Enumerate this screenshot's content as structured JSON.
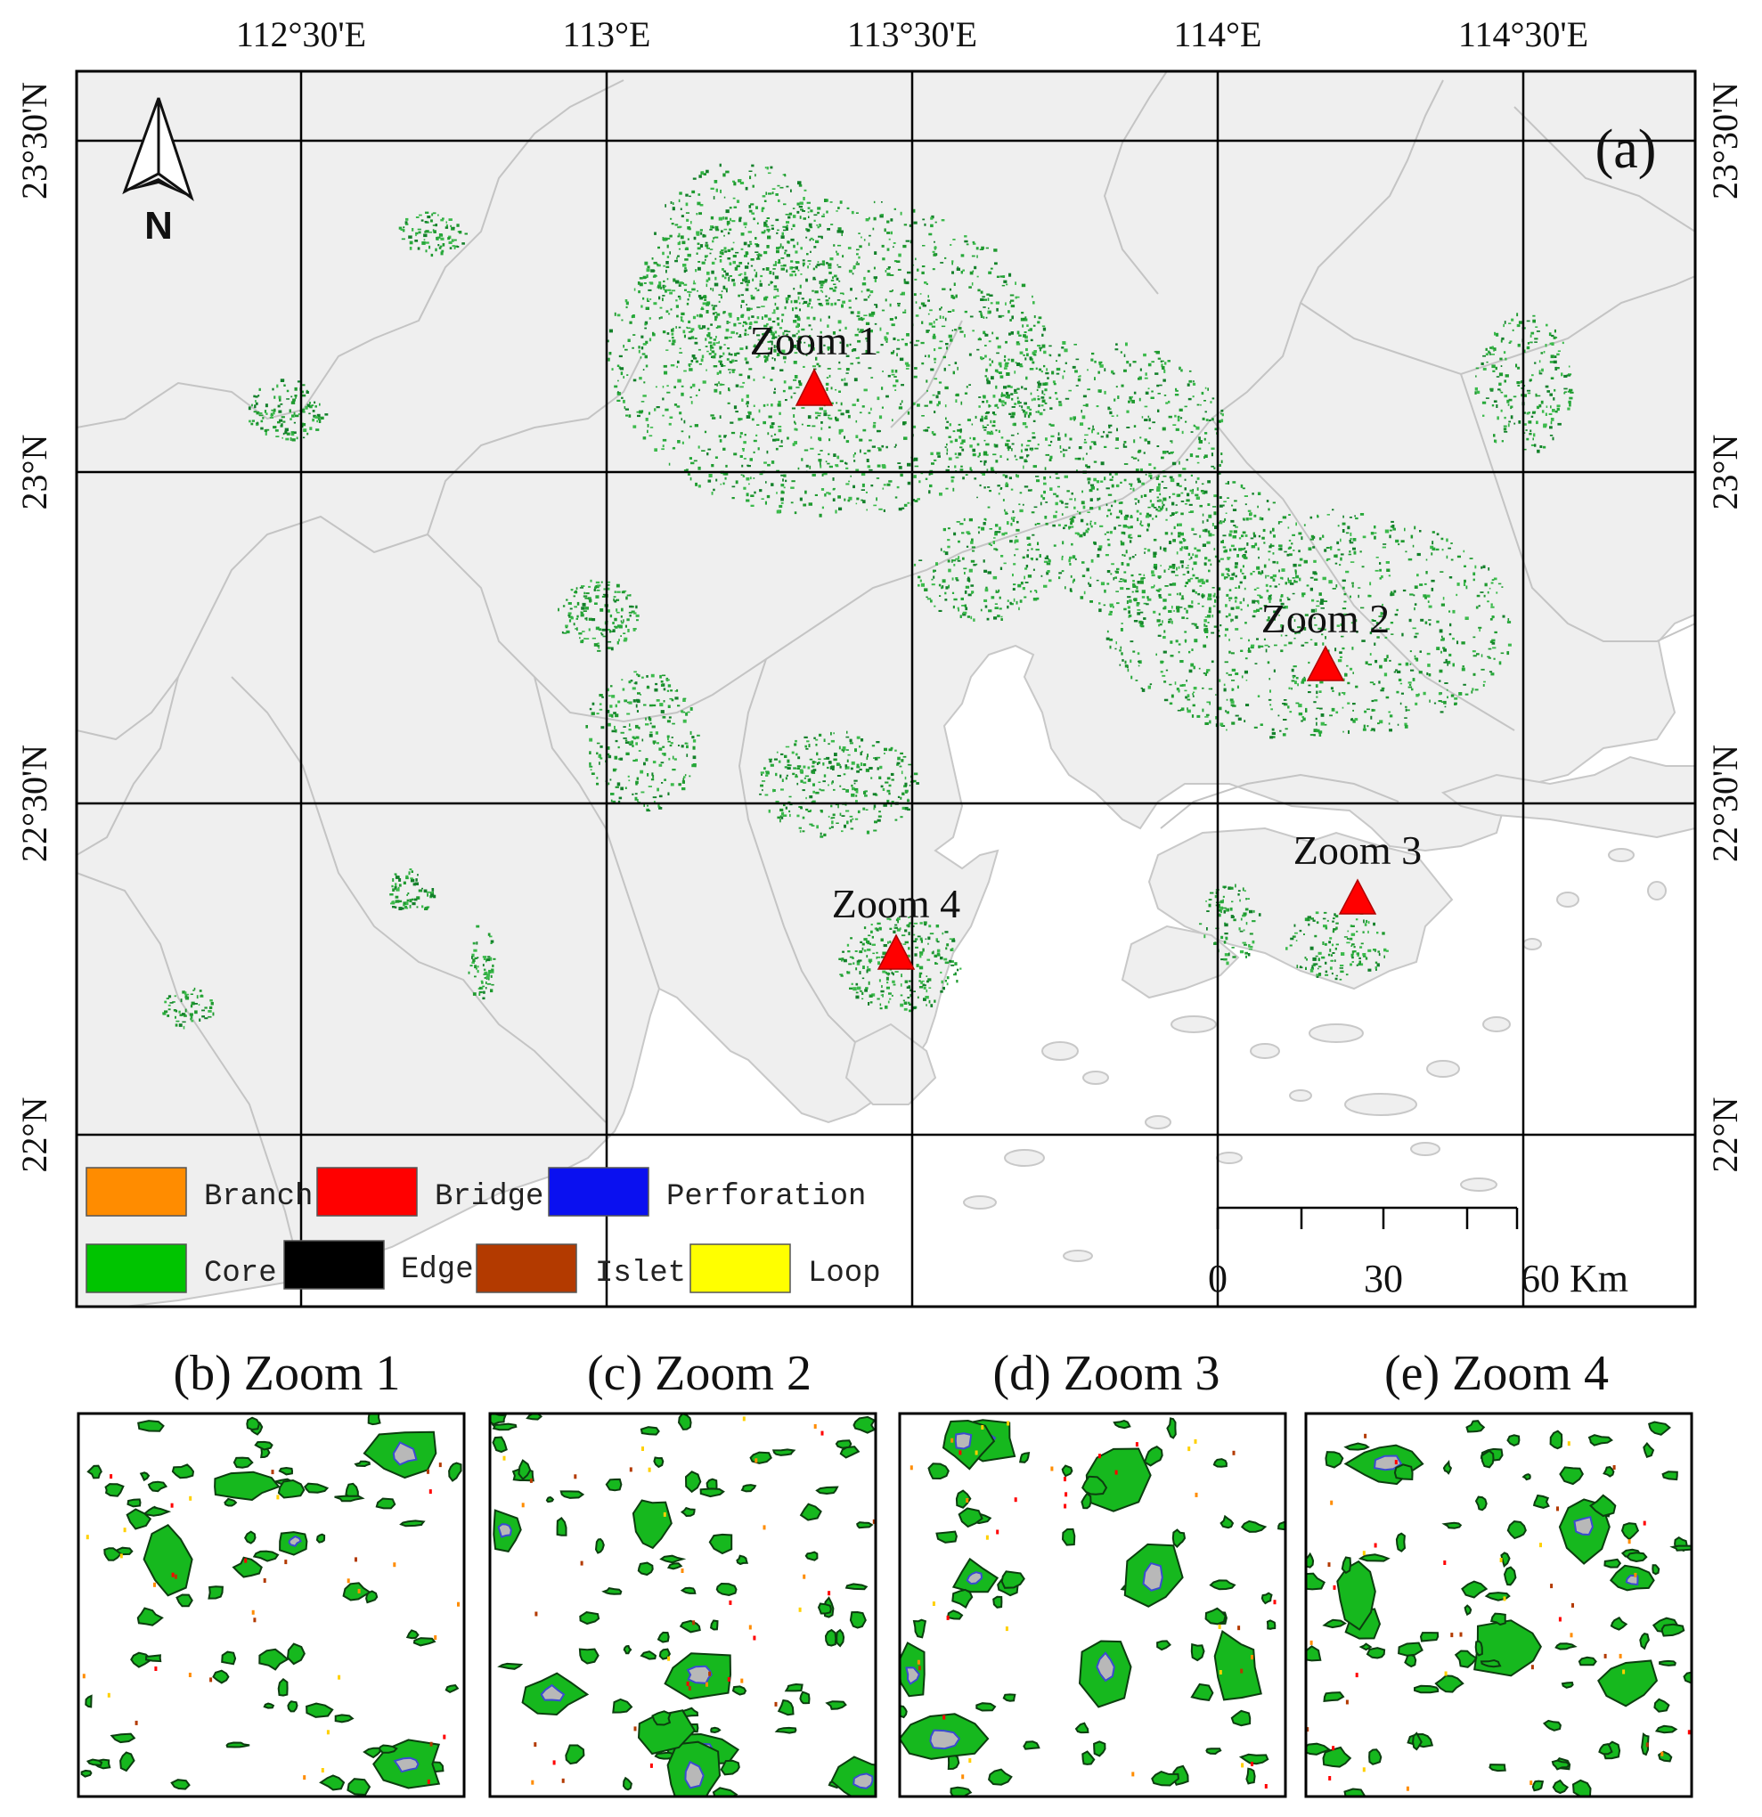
{
  "map": {
    "panel_label": "(a)",
    "lon_ticks": [
      "112°30'E",
      "113°E",
      "113°30'E",
      "114°E",
      "114°30'E"
    ],
    "lat_ticks": [
      "23°30'N",
      "23°N",
      "22°30'N",
      "22°N"
    ],
    "north_label": "N",
    "markers": [
      {
        "label": "Zoom 1"
      },
      {
        "label": "Zoom 2"
      },
      {
        "label": "Zoom 3"
      },
      {
        "label": "Zoom 4"
      }
    ],
    "legend": [
      {
        "label": "Branch",
        "color": "#ff8c00"
      },
      {
        "label": "Bridge",
        "color": "#ff0000"
      },
      {
        "label": "Perforation",
        "color": "#0000ff"
      },
      {
        "label": "Core",
        "color": "#00c400"
      },
      {
        "label": "Edge",
        "color": "#000000"
      },
      {
        "label": "Islet",
        "color": "#b33a00"
      },
      {
        "label": "Loop",
        "color": "#ffff00"
      }
    ],
    "scale_bar": {
      "labels": [
        "0",
        "30",
        "60 Km"
      ]
    },
    "colors": {
      "land": "#efefef",
      "sea": "#ffffff",
      "green_space": "#1f9a2f",
      "marker": "#ff0000"
    }
  },
  "panels": [
    {
      "title": "(b) Zoom 1"
    },
    {
      "title": "(c) Zoom 2"
    },
    {
      "title": "(d) Zoom 3"
    },
    {
      "title": "(e) Zoom 4"
    }
  ]
}
